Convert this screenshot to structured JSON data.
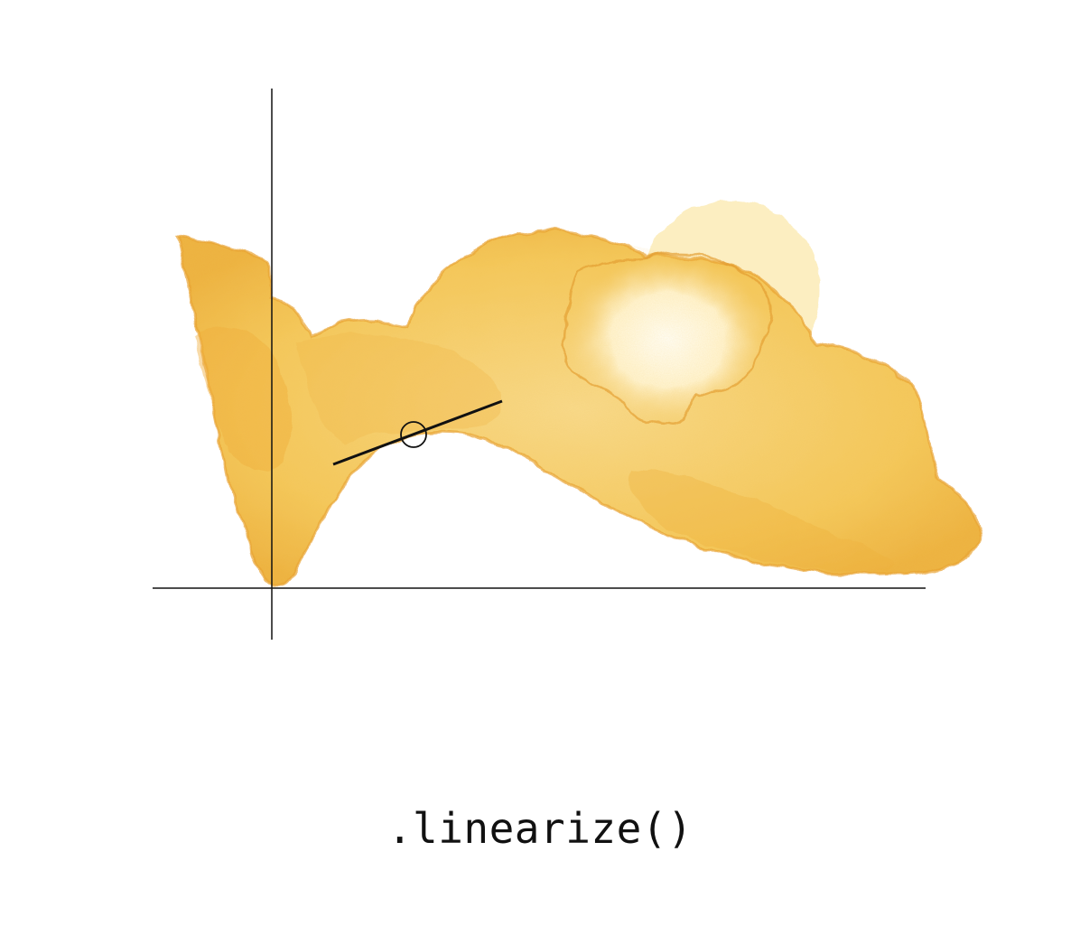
{
  "caption": ".linearize()",
  "illustration": {
    "style": "watercolor blob",
    "paint_color": "#F5C95A",
    "paint_edge_color": "#E9A02E",
    "highlight_color": "#FFF6DA"
  },
  "axes": {
    "color": "#111111"
  },
  "tangent": {
    "color": "#111111",
    "marker": "circle"
  }
}
